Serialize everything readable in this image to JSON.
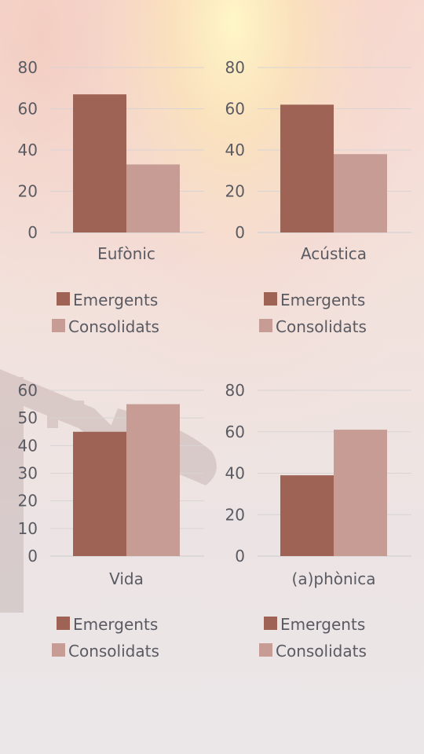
{
  "colors": {
    "emergents": "#9e6355",
    "consolidats": "#c69c94",
    "text": "#5a5a62",
    "grid": "#d8d4d4"
  },
  "chart_data": [
    {
      "type": "bar",
      "categories": [
        "Eufònic"
      ],
      "series": [
        {
          "name": "Emergents",
          "values": [
            67
          ]
        },
        {
          "name": "Consolidats",
          "values": [
            33
          ]
        }
      ],
      "yticks": [
        "0",
        "20",
        "40",
        "60",
        "80"
      ],
      "ylim": [
        0,
        80
      ],
      "legend": "bottom",
      "grid": true
    },
    {
      "type": "bar",
      "categories": [
        "Acústica"
      ],
      "series": [
        {
          "name": "Emergents",
          "values": [
            62
          ]
        },
        {
          "name": "Consolidats",
          "values": [
            38
          ]
        }
      ],
      "yticks": [
        "0",
        "20",
        "40",
        "60",
        "80"
      ],
      "ylim": [
        0,
        80
      ],
      "legend": "bottom",
      "grid": true
    },
    {
      "type": "bar",
      "categories": [
        "Vida"
      ],
      "series": [
        {
          "name": "Emergents",
          "values": [
            45
          ]
        },
        {
          "name": "Consolidats",
          "values": [
            55
          ]
        }
      ],
      "yticks": [
        "0",
        "10",
        "20",
        "30",
        "40",
        "50",
        "60"
      ],
      "ylim": [
        0,
        60
      ],
      "legend": "bottom",
      "grid": true
    },
    {
      "type": "bar",
      "categories": [
        "(a)phònica"
      ],
      "series": [
        {
          "name": "Emergents",
          "values": [
            39
          ]
        },
        {
          "name": "Consolidats",
          "values": [
            61
          ]
        }
      ],
      "yticks": [
        "0",
        "20",
        "40",
        "60",
        "80"
      ],
      "ylim": [
        0,
        80
      ],
      "legend": "bottom",
      "grid": true
    }
  ]
}
